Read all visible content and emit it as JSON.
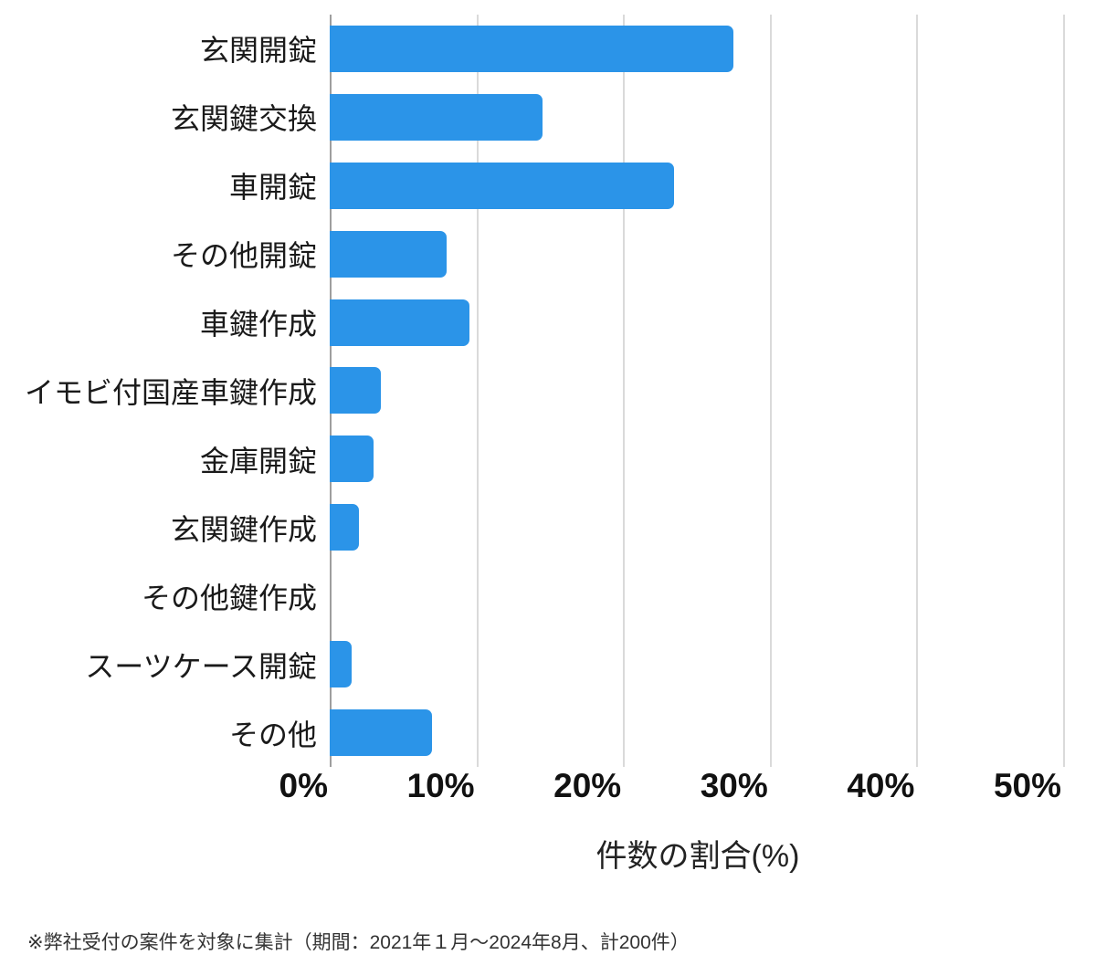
{
  "chart_data": {
    "type": "bar",
    "orientation": "horizontal",
    "title": "",
    "categories": [
      "玄関開錠",
      "玄関鍵交換",
      "車開錠",
      "その他開錠",
      "車鍵作成",
      "イモビ付国産車鍵作成",
      "金庫開錠",
      "玄関鍵作成",
      "その他鍵作成",
      "スーツケース開錠",
      "その他"
    ],
    "values": [
      27.5,
      14.5,
      23.5,
      8,
      9.5,
      3.5,
      3,
      2,
      0,
      1.5,
      7
    ],
    "unit": "%",
    "xlabel": "件数の割合(%)",
    "ylabel": "",
    "x_ticks": [
      "0%",
      "10%",
      "20%",
      "30%",
      "40%",
      "50%"
    ],
    "x_tick_values": [
      0,
      10,
      20,
      30,
      40,
      50
    ],
    "xlim": [
      0,
      50
    ],
    "grid": true,
    "legend": "none",
    "colors": {
      "bar": "#2b94e8",
      "gridline": "#dadada",
      "axisline": "#9e9e9e",
      "label_text": "#1a1a1a",
      "tick_text": "#111111"
    }
  },
  "footnote": "※弊社受付の案件を対象に集計（期間：2021年１月～2024年8月、計200件）"
}
